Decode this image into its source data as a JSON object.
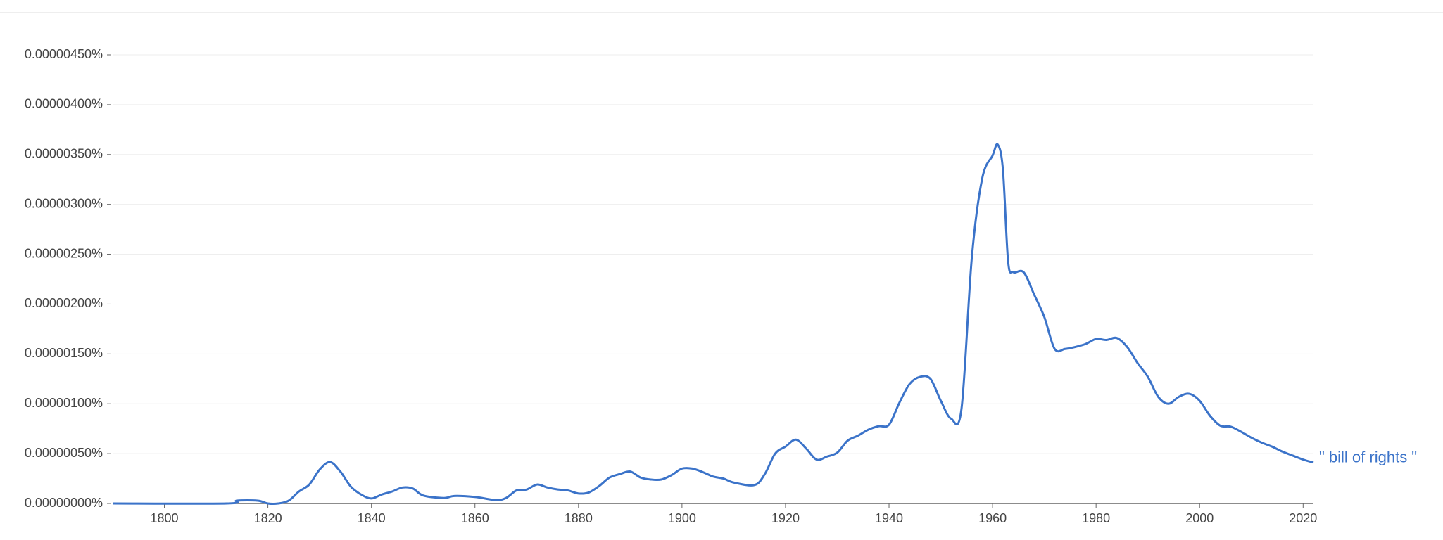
{
  "chart_data": {
    "type": "line",
    "x": [
      1790,
      1812,
      1814,
      1818,
      1820,
      1822,
      1824,
      1826,
      1828,
      1830,
      1832,
      1834,
      1836,
      1838,
      1840,
      1842,
      1844,
      1846,
      1848,
      1850,
      1854,
      1856,
      1860,
      1864,
      1866,
      1868,
      1870,
      1872,
      1874,
      1876,
      1878,
      1880,
      1882,
      1884,
      1886,
      1888,
      1890,
      1892,
      1894,
      1896,
      1898,
      1900,
      1902,
      1904,
      1906,
      1908,
      1910,
      1914,
      1916,
      1918,
      1920,
      1922,
      1924,
      1926,
      1928,
      1930,
      1932,
      1934,
      1936,
      1938,
      1940,
      1942,
      1944,
      1946,
      1948,
      1950,
      1952,
      1954,
      1956,
      1958,
      1960,
      1961,
      1962,
      1963,
      1964,
      1966,
      1968,
      1970,
      1972,
      1974,
      1976,
      1978,
      1980,
      1982,
      1984,
      1986,
      1988,
      1990,
      1992,
      1994,
      1996,
      1998,
      2000,
      2002,
      2004,
      2006,
      2008,
      2010,
      2012,
      2014,
      2016,
      2018,
      2020,
      2022
    ],
    "series": [
      {
        "name": "\" bill of rights \"",
        "color": "#3b73c9",
        "values": [
          0,
          0,
          2.8e-08,
          2.8e-08,
          0,
          0,
          2.8e-08,
          1.2e-07,
          1.9e-07,
          3.4e-07,
          4.15e-07,
          3.2e-07,
          1.7e-07,
          9e-08,
          5e-08,
          9e-08,
          1.2e-07,
          1.6e-07,
          1.5e-07,
          8e-08,
          5.5e-08,
          7.5e-08,
          6.5e-08,
          3.5e-08,
          5.5e-08,
          1.3e-07,
          1.4e-07,
          1.9e-07,
          1.6e-07,
          1.4e-07,
          1.3e-07,
          1e-07,
          1.1e-07,
          1.75e-07,
          2.6e-07,
          2.95e-07,
          3.2e-07,
          2.6e-07,
          2.4e-07,
          2.4e-07,
          2.85e-07,
          3.5e-07,
          3.5e-07,
          3.15e-07,
          2.7e-07,
          2.5e-07,
          2.1e-07,
          1.85e-07,
          2.95e-07,
          5e-07,
          5.7e-07,
          6.4e-07,
          5.5e-07,
          4.4e-07,
          4.7e-07,
          5.1e-07,
          6.3e-07,
          6.8e-07,
          7.4e-07,
          7.75e-07,
          7.9e-07,
          1.01e-06,
          1.2e-06,
          1.27e-06,
          1.25e-06,
          1.03e-06,
          8.5e-07,
          9.5e-07,
          2.47e-06,
          3.26e-06,
          3.49e-06,
          3.6e-06,
          3.35e-06,
          2.43e-06,
          2.32e-06,
          2.32e-06,
          2.1e-06,
          1.87e-06,
          1.55e-06,
          1.55e-06,
          1.57e-06,
          1.6e-06,
          1.65e-06,
          1.64e-06,
          1.66e-06,
          1.57e-06,
          1.41e-06,
          1.27e-06,
          1.07e-06,
          1e-06,
          1.07e-06,
          1.1e-06,
          1.03e-06,
          8.8e-07,
          7.8e-07,
          7.7e-07,
          7.2e-07,
          6.6e-07,
          6.1e-07,
          5.7e-07,
          5.2e-07,
          4.8e-07,
          4.4e-07,
          4.1e-07
        ]
      }
    ],
    "xlim": [
      1790,
      2022
    ],
    "xticks": [
      1800,
      1820,
      1840,
      1860,
      1880,
      1900,
      1920,
      1940,
      1960,
      1980,
      2000,
      2020
    ],
    "ylim": [
      0,
      4.5e-06
    ],
    "yticks": [
      {
        "value": 0,
        "label": "0.00000000%"
      },
      {
        "value": 5e-07,
        "label": "0.00000050%"
      },
      {
        "value": 1e-06,
        "label": "0.00000100%"
      },
      {
        "value": 1.5e-06,
        "label": "0.00000150%"
      },
      {
        "value": 2e-06,
        "label": "0.00000200%"
      },
      {
        "value": 2.5e-06,
        "label": "0.00000250%"
      },
      {
        "value": 3e-06,
        "label": "0.00000300%"
      },
      {
        "value": 3.5e-06,
        "label": "0.00000350%"
      },
      {
        "value": 4e-06,
        "label": "0.00000400%"
      },
      {
        "value": 4.5e-06,
        "label": "0.00000450%"
      }
    ],
    "grid": true
  }
}
